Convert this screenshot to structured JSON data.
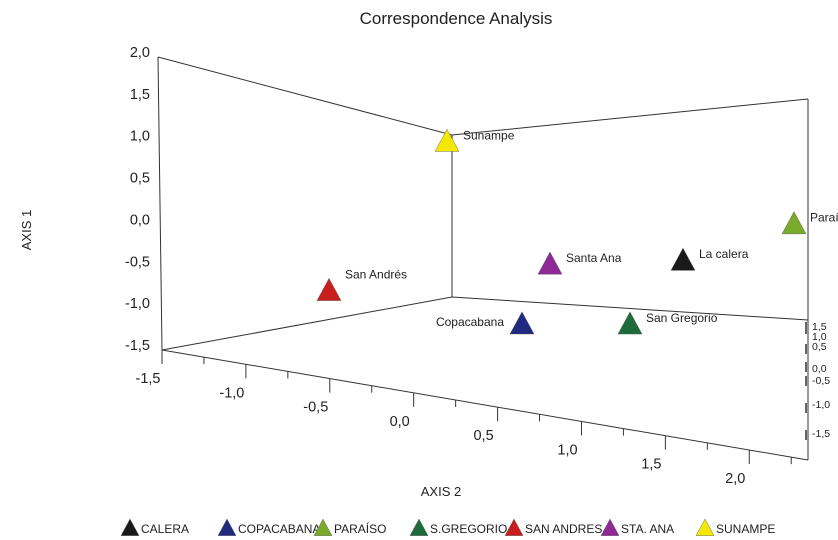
{
  "chart_data": {
    "type": "scatter",
    "title": "Correspondence Analysis",
    "ylabel": "AXIS 1",
    "xlabel": "AXIS 2",
    "y_ticks": [
      "-1,5",
      "-1,0",
      "-0,5",
      "0,0",
      "0,5",
      "1,0",
      "1,5",
      "2,0"
    ],
    "x_ticks": [
      "-1,5",
      "-1,0",
      "-0,5",
      "0,0",
      "0,5",
      "1,0",
      "1,5",
      "2,0"
    ],
    "z_ticks": [
      "1,5",
      "1,0",
      "0,5",
      "0,0",
      "-0,5",
      "-1,0",
      "-1,5"
    ],
    "ylim": [
      -1.5,
      2.0
    ],
    "xlim": [
      -1.5,
      2.0
    ],
    "zlim": [
      -1.5,
      1.5
    ],
    "legend_position": "bottom",
    "series": [
      {
        "name": "CALERA",
        "label": "La calera",
        "color": "#1a1a1a",
        "x": 1.25,
        "y": 0.2,
        "z": -0.2
      },
      {
        "name": "COPACABANA",
        "label": "Copacabana",
        "color": "#1f2a80",
        "x": 0.4,
        "y": -0.75,
        "z": 0.0
      },
      {
        "name": "PARAÍSO",
        "label": "Paraíso",
        "color": "#7aaa2c",
        "x": 1.8,
        "y": 0.8,
        "z": -0.5
      },
      {
        "name": "S.GREGORIO",
        "label": "San Gregorio",
        "color": "#1d6b3a",
        "x": 1.0,
        "y": -0.65,
        "z": 0.0
      },
      {
        "name": "SAN ANDRES",
        "label": "San Andrés",
        "color": "#c81e1e",
        "x": -0.65,
        "y": -0.55,
        "z": 0.1
      },
      {
        "name": "STA. ANA",
        "label": "Santa Ana",
        "color": "#8e2a96",
        "x": 0.6,
        "y": -0.05,
        "z": 0.2
      },
      {
        "name": "SUNAMPE",
        "label": "Sunampe",
        "color": "#f4e800",
        "x": 0.05,
        "y": 1.3,
        "z": 0.3
      }
    ]
  }
}
